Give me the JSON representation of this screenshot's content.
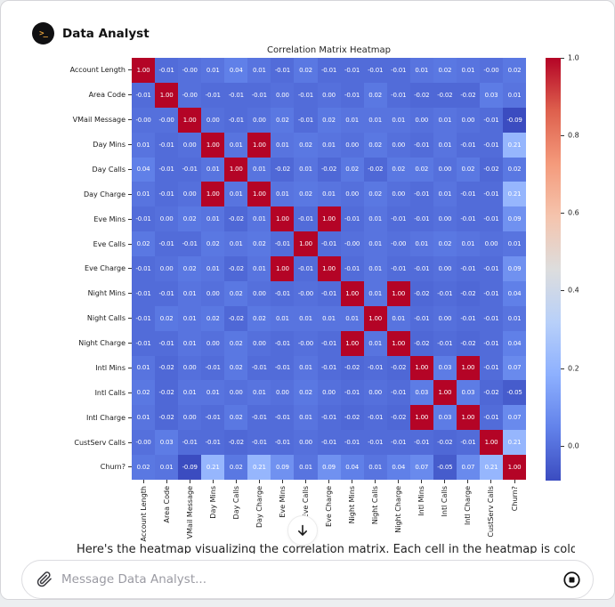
{
  "header": {
    "app_name": "Data Analyst",
    "avatar_glyph": ">_"
  },
  "chart_data": {
    "type": "heatmap",
    "title": "Correlation Matrix Heatmap",
    "colormap": "coolwarm",
    "vmin": -0.09,
    "vmax": 1.0,
    "color_min": "#3b4cc0",
    "color_max": "#b40426",
    "cell_text_color": "#ffffff",
    "colorbar_ticks": [
      "1.0",
      "0.8",
      "0.6",
      "0.4",
      "0.2",
      "0.0"
    ],
    "labels": [
      "Account Length",
      "Area Code",
      "VMail Message",
      "Day Mins",
      "Day Calls",
      "Day Charge",
      "Eve Mins",
      "Eve Calls",
      "Eve Charge",
      "Night Mins",
      "Night Calls",
      "Night Charge",
      "Intl Mins",
      "Intl Calls",
      "Intl Charge",
      "CustServ Calls",
      "Churn?"
    ],
    "matrix": [
      [
        "1.00",
        "-0.01",
        "-0.00",
        "0.01",
        "0.04",
        "0.01",
        "-0.01",
        "0.02",
        "-0.01",
        "-0.01",
        "-0.01",
        "-0.01",
        "0.01",
        "0.02",
        "0.01",
        "-0.00",
        "0.02"
      ],
      [
        "-0.01",
        "1.00",
        "-0.00",
        "-0.01",
        "-0.01",
        "-0.01",
        "0.00",
        "-0.01",
        "0.00",
        "-0.01",
        "0.02",
        "-0.01",
        "-0.02",
        "-0.02",
        "-0.02",
        "0.03",
        "0.01"
      ],
      [
        "-0.00",
        "-0.00",
        "1.00",
        "0.00",
        "-0.01",
        "0.00",
        "0.02",
        "-0.01",
        "0.02",
        "0.01",
        "0.01",
        "0.01",
        "0.00",
        "0.01",
        "0.00",
        "-0.01",
        "-0.09"
      ],
      [
        "0.01",
        "-0.01",
        "0.00",
        "1.00",
        "0.01",
        "1.00",
        "0.01",
        "0.02",
        "0.01",
        "0.00",
        "0.02",
        "0.00",
        "-0.01",
        "0.01",
        "-0.01",
        "-0.01",
        "0.21"
      ],
      [
        "0.04",
        "-0.01",
        "-0.01",
        "0.01",
        "1.00",
        "0.01",
        "-0.02",
        "0.01",
        "-0.02",
        "0.02",
        "-0.02",
        "0.02",
        "0.02",
        "0.00",
        "0.02",
        "-0.02",
        "0.02"
      ],
      [
        "0.01",
        "-0.01",
        "0.00",
        "1.00",
        "0.01",
        "1.00",
        "0.01",
        "0.02",
        "0.01",
        "0.00",
        "0.02",
        "0.00",
        "-0.01",
        "0.01",
        "-0.01",
        "-0.01",
        "0.21"
      ],
      [
        "-0.01",
        "0.00",
        "0.02",
        "0.01",
        "-0.02",
        "0.01",
        "1.00",
        "-0.01",
        "1.00",
        "-0.01",
        "0.01",
        "-0.01",
        "-0.01",
        "0.00",
        "-0.01",
        "-0.01",
        "0.09"
      ],
      [
        "0.02",
        "-0.01",
        "-0.01",
        "0.02",
        "0.01",
        "0.02",
        "-0.01",
        "1.00",
        "-0.01",
        "-0.00",
        "0.01",
        "-0.00",
        "0.01",
        "0.02",
        "0.01",
        "0.00",
        "0.01"
      ],
      [
        "-0.01",
        "0.00",
        "0.02",
        "0.01",
        "-0.02",
        "0.01",
        "1.00",
        "-0.01",
        "1.00",
        "-0.01",
        "0.01",
        "-0.01",
        "-0.01",
        "0.00",
        "-0.01",
        "-0.01",
        "0.09"
      ],
      [
        "-0.01",
        "-0.01",
        "0.01",
        "0.00",
        "0.02",
        "0.00",
        "-0.01",
        "-0.00",
        "-0.01",
        "1.00",
        "0.01",
        "1.00",
        "-0.02",
        "-0.01",
        "-0.02",
        "-0.01",
        "0.04"
      ],
      [
        "-0.01",
        "0.02",
        "0.01",
        "0.02",
        "-0.02",
        "0.02",
        "0.01",
        "0.01",
        "0.01",
        "0.01",
        "1.00",
        "0.01",
        "-0.01",
        "0.00",
        "-0.01",
        "-0.01",
        "0.01"
      ],
      [
        "-0.01",
        "-0.01",
        "0.01",
        "0.00",
        "0.02",
        "0.00",
        "-0.01",
        "-0.00",
        "-0.01",
        "1.00",
        "0.01",
        "1.00",
        "-0.02",
        "-0.01",
        "-0.02",
        "-0.01",
        "0.04"
      ],
      [
        "0.01",
        "-0.02",
        "0.00",
        "-0.01",
        "0.02",
        "-0.01",
        "-0.01",
        "0.01",
        "-0.01",
        "-0.02",
        "-0.01",
        "-0.02",
        "1.00",
        "0.03",
        "1.00",
        "-0.01",
        "0.07"
      ],
      [
        "0.02",
        "-0.02",
        "0.01",
        "0.01",
        "0.00",
        "0.01",
        "0.00",
        "0.02",
        "0.00",
        "-0.01",
        "0.00",
        "-0.01",
        "0.03",
        "1.00",
        "0.03",
        "-0.02",
        "-0.05"
      ],
      [
        "0.01",
        "-0.02",
        "0.00",
        "-0.01",
        "0.02",
        "-0.01",
        "-0.01",
        "0.01",
        "-0.01",
        "-0.02",
        "-0.01",
        "-0.02",
        "1.00",
        "0.03",
        "1.00",
        "-0.01",
        "0.07"
      ],
      [
        "-0.00",
        "0.03",
        "-0.01",
        "-0.01",
        "-0.02",
        "-0.01",
        "-0.01",
        "0.00",
        "-0.01",
        "-0.01",
        "-0.01",
        "-0.01",
        "-0.01",
        "-0.02",
        "-0.01",
        "1.00",
        "0.21"
      ],
      [
        "0.02",
        "0.01",
        "-0.09",
        "0.21",
        "0.02",
        "0.21",
        "0.09",
        "0.01",
        "0.09",
        "0.04",
        "0.01",
        "0.04",
        "0.07",
        "-0.05",
        "0.07",
        "0.21",
        "1.00"
      ]
    ]
  },
  "assistant_message": {
    "clipped_text": "Here's the heatmap visualizing the correlation matrix. Each cell in the heatmap is colored by the"
  },
  "scroll_button": {
    "icon": "down-arrow"
  },
  "composer": {
    "placeholder": "Message Data Analyst...",
    "attach_icon": "paperclip",
    "stop_icon": "stop"
  }
}
